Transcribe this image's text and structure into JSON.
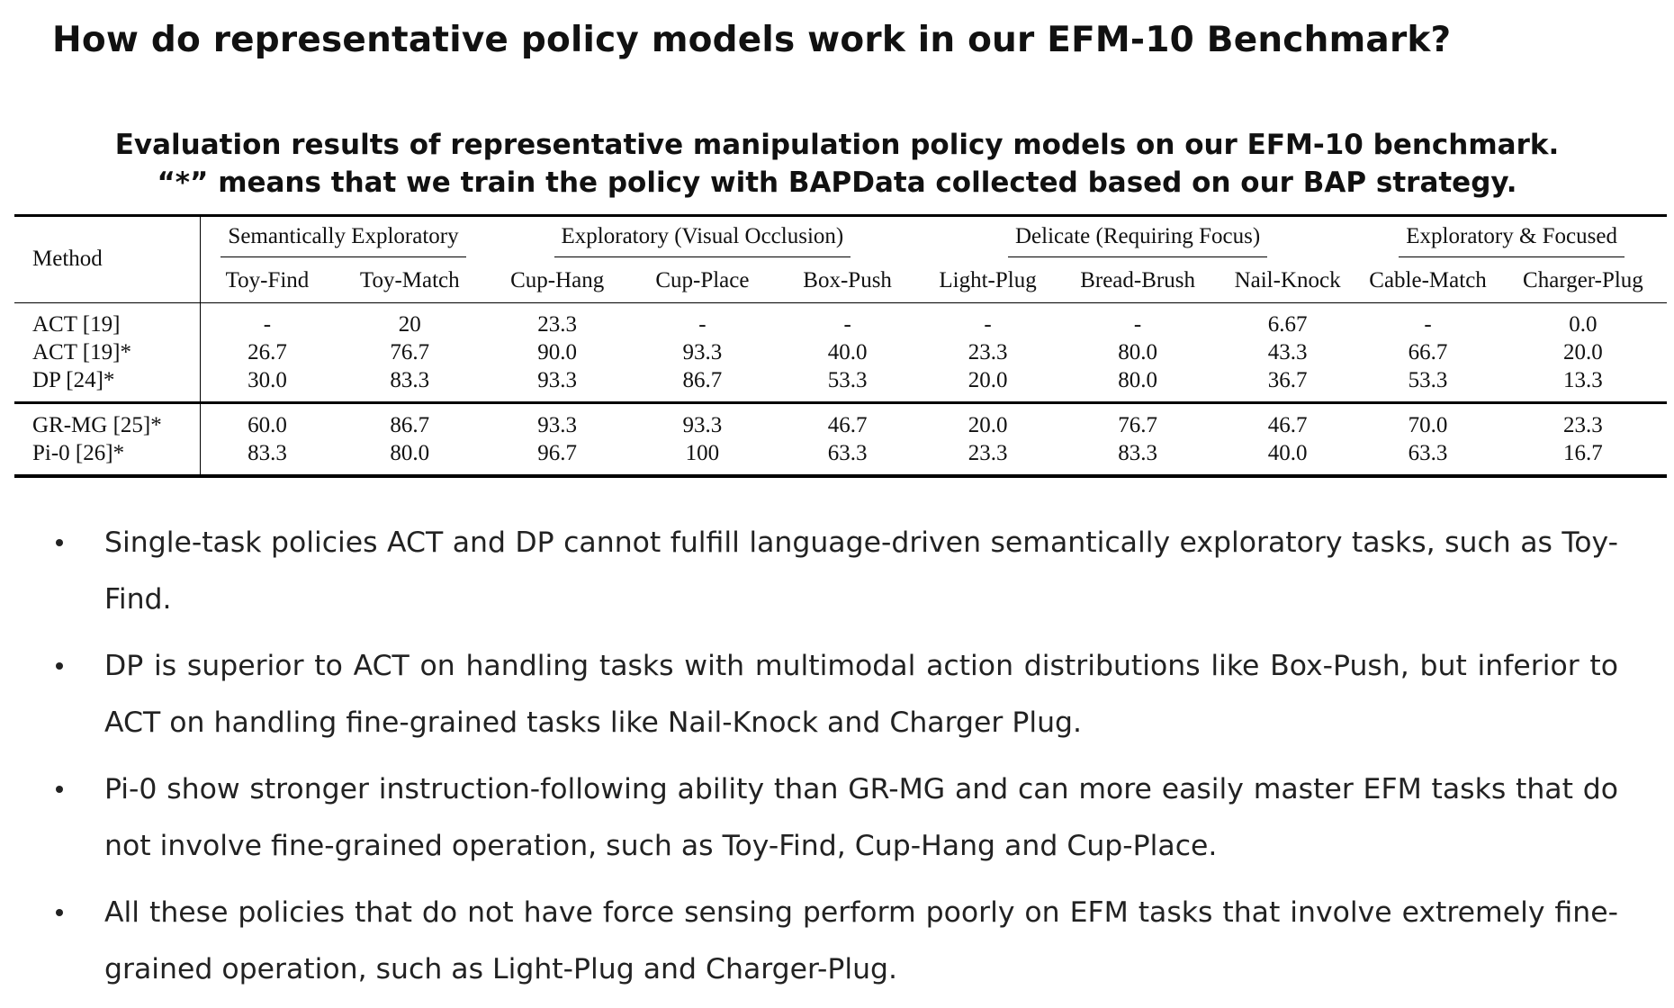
{
  "title": "How do representative policy models work in our EFM-10 Benchmark?",
  "caption": {
    "line1": "Evaluation results of representative manipulation policy models on our EFM-10 benchmark.",
    "line2": "“*” means that we train the policy with BAPData collected based on our BAP strategy."
  },
  "table": {
    "method_header": "Method",
    "groups": [
      "Semantically Exploratory",
      "Exploratory (Visual Occlusion)",
      "Delicate (Requiring Focus)",
      "Exploratory & Focused"
    ],
    "tasks": [
      "Toy-Find",
      "Toy-Match",
      "Cup-Hang",
      "Cup-Place",
      "Box-Push",
      "Light-Plug",
      "Bread-Brush",
      "Nail-Knock",
      "Cable-Match",
      "Charger-Plug"
    ],
    "rows": [
      {
        "method": "ACT [19]",
        "values": [
          "-",
          "20",
          "23.3",
          "-",
          "-",
          "-",
          "-",
          "6.67",
          "-",
          "0.0"
        ]
      },
      {
        "method": "ACT [19]*",
        "values": [
          "26.7",
          "76.7",
          "90.0",
          "93.3",
          "40.0",
          "23.3",
          "80.0",
          "43.3",
          "66.7",
          "20.0"
        ]
      },
      {
        "method": "DP [24]*",
        "values": [
          "30.0",
          "83.3",
          "93.3",
          "86.7",
          "53.3",
          "20.0",
          "80.0",
          "36.7",
          "53.3",
          "13.3"
        ]
      },
      {
        "method": "GR-MG [25]*",
        "values": [
          "60.0",
          "86.7",
          "93.3",
          "93.3",
          "46.7",
          "20.0",
          "76.7",
          "46.7",
          "70.0",
          "23.3"
        ]
      },
      {
        "method": "Pi-0 [26]*",
        "values": [
          "83.3",
          "80.0",
          "96.7",
          "100",
          "63.3",
          "23.3",
          "83.3",
          "40.0",
          "63.3",
          "16.7"
        ]
      }
    ]
  },
  "bullets": [
    "Single-task policies ACT and DP cannot fulfill language-driven semantically exploratory tasks, such as Toy-Find.",
    "DP is superior to ACT on handling tasks with multimodal action distributions like Box-Push, but inferior to ACT on handling fine-grained tasks like Nail-Knock and Charger Plug.",
    "Pi-0 show stronger instruction-following ability than GR-MG and can more easily master EFM tasks that do not involve fine-grained operation, such as Toy-Find, Cup-Hang and Cup-Place.",
    "All these policies that do not have force sensing perform poorly on EFM tasks that involve extremely fine-grained operation, such as Light-Plug and Charger-Plug."
  ]
}
